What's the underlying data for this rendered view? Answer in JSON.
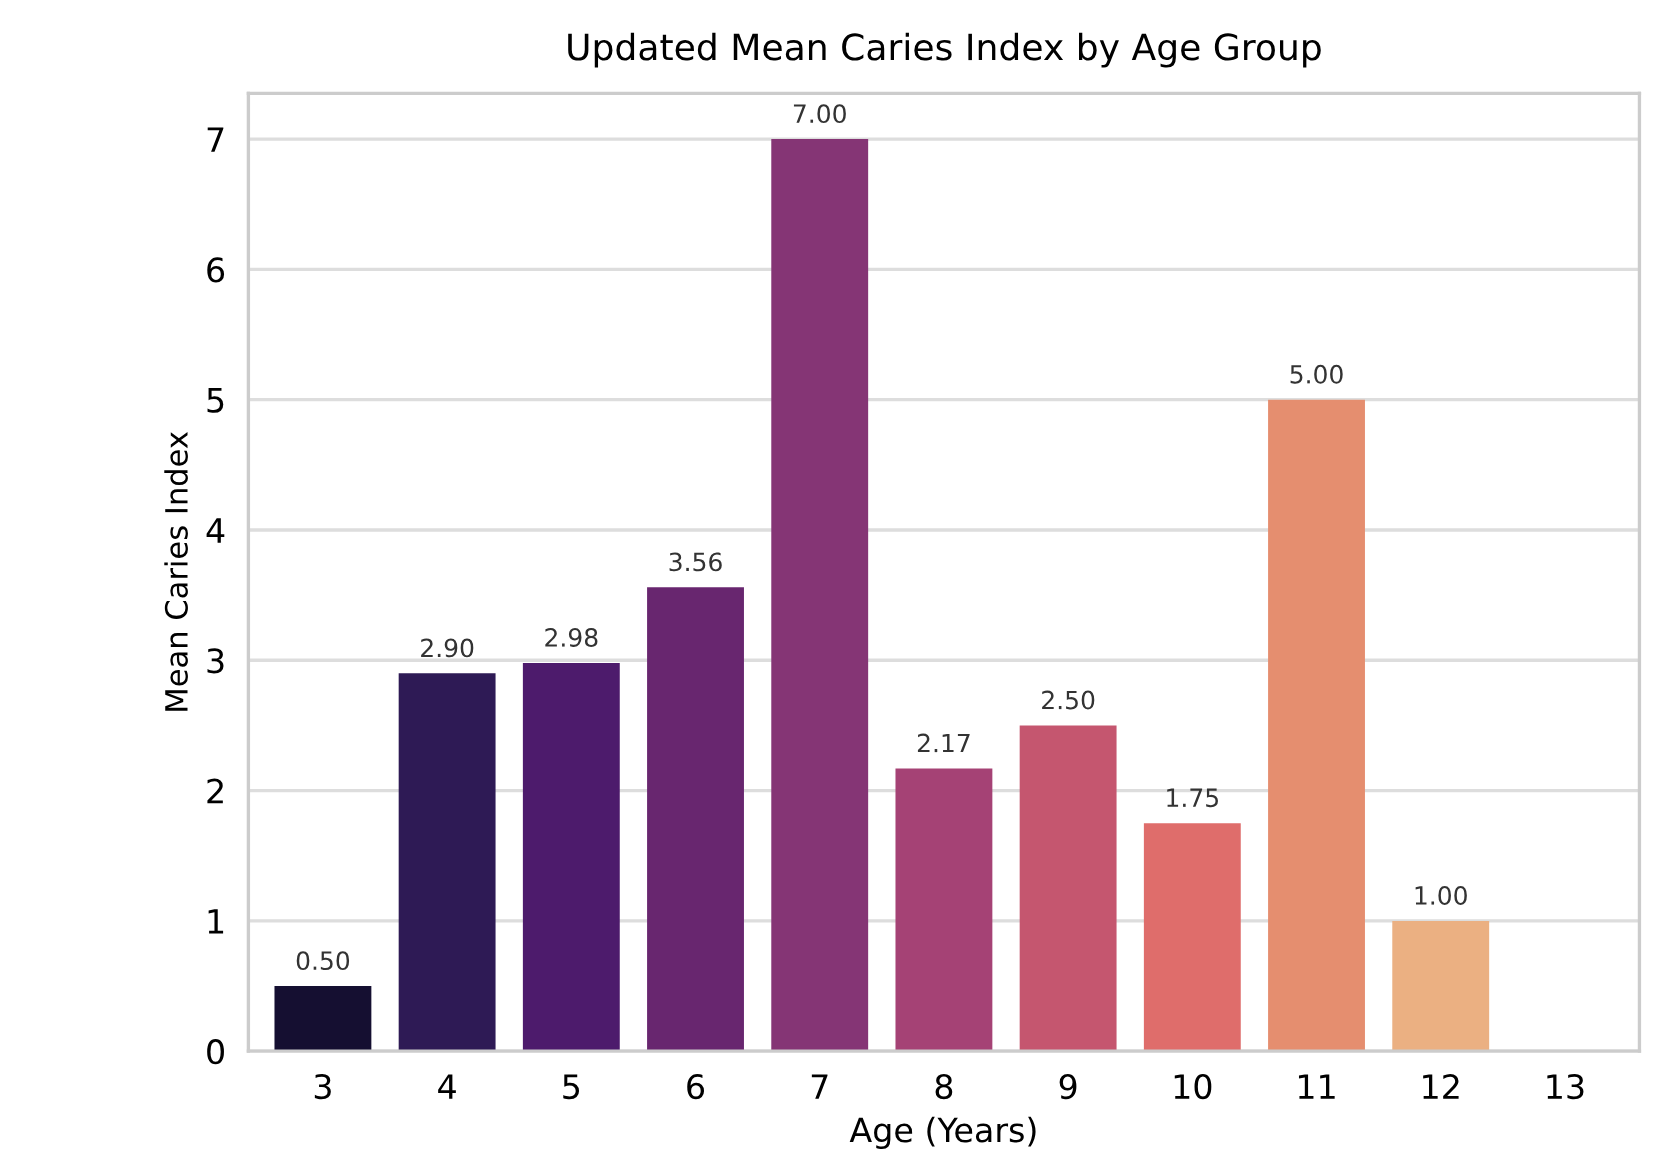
{
  "chart_data": {
    "type": "bar",
    "title": "Updated Mean Caries Index by Age Group",
    "xlabel": "Age (Years)",
    "ylabel": "Mean Caries Index",
    "categories": [
      "3",
      "4",
      "5",
      "6",
      "7",
      "8",
      "9",
      "10",
      "11",
      "12",
      "13"
    ],
    "values": [
      0.5,
      2.9,
      2.98,
      3.56,
      7.0,
      2.17,
      2.5,
      1.75,
      5.0,
      1.0,
      null
    ],
    "colors": [
      "#150f31",
      "#2e1a55",
      "#4d1b6c",
      "#68266f",
      "#853575",
      "#a54275",
      "#c5566f",
      "#df6d6b",
      "#e58e6f",
      "#ebb082",
      null
    ],
    "value_labels": [
      "0.50",
      "2.90",
      "2.98",
      "3.56",
      "7.00",
      "2.17",
      "2.50",
      "1.75",
      "5.00",
      "1.00",
      null
    ],
    "ylim": [
      0,
      7.35
    ],
    "yticks": [
      0,
      1,
      2,
      3,
      4,
      5,
      6,
      7
    ],
    "grid": "y"
  }
}
